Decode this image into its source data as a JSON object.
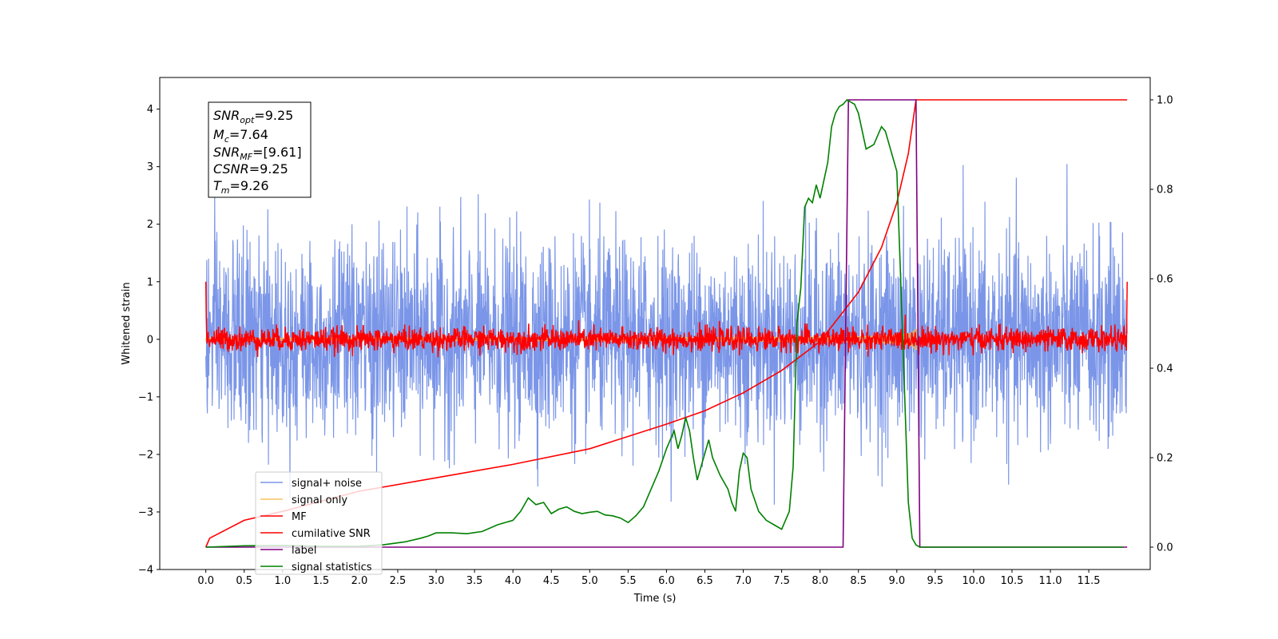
{
  "chart_data": {
    "type": "line",
    "title": "",
    "xlabel": "Time (s)",
    "ylabel_left": "Whitened strain",
    "ylabel_right": "",
    "xlim": [
      -0.6,
      12.3
    ],
    "ylim_left": [
      -4.0,
      4.55
    ],
    "ylim_right": [
      -0.05,
      1.05
    ],
    "x_ticks": [
      "0.0",
      "0.5",
      "1.0",
      "1.5",
      "2.0",
      "2.5",
      "3.0",
      "3.5",
      "4.0",
      "4.5",
      "5.0",
      "5.5",
      "6.0",
      "6.5",
      "7.0",
      "7.5",
      "8.0",
      "8.5",
      "9.0",
      "9.5",
      "10.0",
      "10.5",
      "11.0",
      "11.5"
    ],
    "y_ticks_left": [
      "4",
      "3",
      "2",
      "1",
      "0",
      "−1",
      "−2",
      "−3",
      "−4"
    ],
    "y_ticks_right": [
      "1.0",
      "0.8",
      "0.6",
      "0.4",
      "0.2",
      "0.0"
    ],
    "grid": false,
    "legend_position": "lower-left",
    "info_box": {
      "snr_opt_base": "SNR",
      "snr_opt_sub": "opt",
      "snr_opt_val": "=9.25",
      "mc_base": "M",
      "mc_sub": "c",
      "mc_val": "=7.64",
      "snr_mf_base": "SNR",
      "snr_mf_sub": "MF",
      "snr_mf_val": "=[9.61]",
      "csnr_base": "CSNR",
      "csnr_val": "=9.25",
      "tm_base": "T",
      "tm_sub": "m",
      "tm_val": "=9.26"
    },
    "series": [
      {
        "name": "signal+ noise",
        "color": "#7b96e8",
        "axis": "left",
        "kind": "noise",
        "std": 0.85,
        "duration": 12.0
      },
      {
        "name": "signal only",
        "color": "#f5c45e",
        "axis": "left",
        "kind": "chirp",
        "end_time": 9.26,
        "peak_amplitude": 1.0
      },
      {
        "name": "MF",
        "color": "#ff0000",
        "axis": "left",
        "kind": "noise",
        "std": 0.1,
        "duration": 12.0
      },
      {
        "name": "cumilative SNR",
        "color": "#ff0000",
        "axis": "right",
        "x": [
          0.0,
          0.05,
          0.5,
          1.0,
          2.0,
          3.0,
          4.0,
          5.0,
          6.0,
          6.5,
          7.0,
          7.5,
          8.0,
          8.5,
          8.8,
          9.0,
          9.15,
          9.25,
          9.3,
          12.0
        ],
        "y": [
          0.0,
          0.02,
          0.06,
          0.08,
          0.125,
          0.155,
          0.185,
          0.22,
          0.275,
          0.305,
          0.345,
          0.395,
          0.46,
          0.57,
          0.67,
          0.77,
          0.88,
          1.0,
          1.0,
          1.0
        ]
      },
      {
        "name": "label",
        "color": "#800080",
        "axis": "right",
        "x": [
          0.0,
          8.3,
          8.37,
          9.25,
          9.3,
          12.0
        ],
        "y": [
          0.0,
          0.0,
          1.0,
          1.0,
          0.0,
          0.0
        ]
      },
      {
        "name": "signal statistics",
        "color": "#008000",
        "axis": "right",
        "x": [
          0.0,
          0.5,
          1.0,
          1.5,
          2.0,
          2.3,
          2.6,
          2.8,
          2.9,
          3.0,
          3.2,
          3.4,
          3.6,
          3.8,
          4.0,
          4.1,
          4.2,
          4.3,
          4.4,
          4.5,
          4.6,
          4.7,
          4.8,
          4.9,
          5.0,
          5.1,
          5.2,
          5.3,
          5.4,
          5.5,
          5.6,
          5.7,
          5.8,
          5.9,
          6.0,
          6.05,
          6.1,
          6.15,
          6.2,
          6.25,
          6.3,
          6.35,
          6.4,
          6.5,
          6.55,
          6.6,
          6.7,
          6.8,
          6.85,
          6.9,
          6.95,
          7.0,
          7.05,
          7.1,
          7.2,
          7.3,
          7.4,
          7.5,
          7.55,
          7.6,
          7.65,
          7.7,
          7.75,
          7.8,
          7.85,
          7.9,
          7.95,
          8.0,
          8.05,
          8.1,
          8.15,
          8.2,
          8.25,
          8.3,
          8.35,
          8.4,
          8.45,
          8.5,
          8.6,
          8.7,
          8.8,
          8.85,
          8.9,
          9.0,
          9.05,
          9.1,
          9.15,
          9.2,
          9.25,
          9.3,
          9.35,
          9.4,
          9.5,
          10.0,
          11.0,
          11.5,
          11.95
        ],
        "y": [
          0.0,
          0.003,
          0.004,
          0.002,
          0.002,
          0.005,
          0.012,
          0.02,
          0.025,
          0.032,
          0.032,
          0.03,
          0.035,
          0.05,
          0.06,
          0.08,
          0.11,
          0.095,
          0.1,
          0.075,
          0.085,
          0.09,
          0.08,
          0.075,
          0.078,
          0.08,
          0.072,
          0.07,
          0.065,
          0.055,
          0.07,
          0.09,
          0.13,
          0.17,
          0.22,
          0.24,
          0.26,
          0.22,
          0.25,
          0.29,
          0.26,
          0.2,
          0.15,
          0.21,
          0.24,
          0.2,
          0.16,
          0.13,
          0.1,
          0.08,
          0.17,
          0.21,
          0.2,
          0.13,
          0.08,
          0.06,
          0.05,
          0.04,
          0.06,
          0.08,
          0.18,
          0.5,
          0.58,
          0.76,
          0.78,
          0.77,
          0.81,
          0.78,
          0.82,
          0.86,
          0.94,
          0.97,
          0.985,
          0.99,
          1.0,
          0.995,
          0.99,
          0.97,
          0.89,
          0.9,
          0.94,
          0.93,
          0.9,
          0.84,
          0.6,
          0.35,
          0.1,
          0.02,
          0.005,
          0.0,
          0.0,
          0.0,
          0.0,
          0.0,
          0.0,
          0.0,
          0.0
        ]
      }
    ]
  }
}
